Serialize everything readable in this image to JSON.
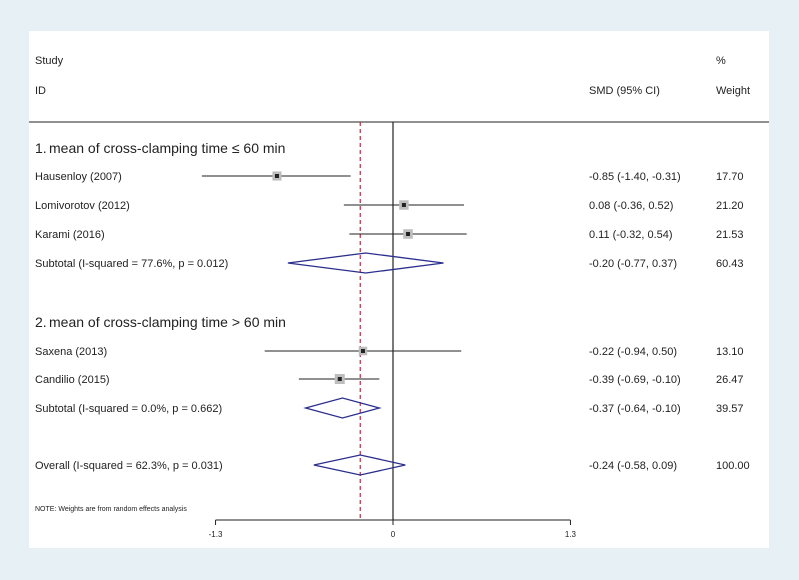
{
  "chart_data": {
    "type": "forest",
    "header": {
      "study_top": "Study",
      "study_bottom": "ID",
      "ci_header": "SMD (95% CI)",
      "weight_top": "%",
      "weight_bottom": "Weight"
    },
    "groups": [
      {
        "number": "1.",
        "title": "mean of cross-clamping time ≤ 60 min",
        "studies": [
          {
            "label": "Hausenloy (2007)",
            "est": -0.85,
            "lo": -1.4,
            "hi": -0.31,
            "ci": "-0.85 (-1.40, -0.31)",
            "weight": "17.70",
            "w": 17.7
          },
          {
            "label": "Lomivorotov (2012)",
            "est": 0.08,
            "lo": -0.36,
            "hi": 0.52,
            "ci": "0.08 (-0.36, 0.52)",
            "weight": "21.20",
            "w": 21.2
          },
          {
            "label": "Karami (2016)",
            "est": 0.11,
            "lo": -0.32,
            "hi": 0.54,
            "ci": "0.11 (-0.32, 0.54)",
            "weight": "21.53",
            "w": 21.53
          }
        ],
        "subtotal": {
          "label": "Subtotal  (I-squared = 77.6%, p = 0.012)",
          "est": -0.2,
          "lo": -0.77,
          "hi": 0.37,
          "ci": "-0.20 (-0.77, 0.37)",
          "weight": "60.43"
        }
      },
      {
        "number": "2.",
        "title": "mean of cross-clamping time > 60 min",
        "studies": [
          {
            "label": "Saxena (2013)",
            "est": -0.22,
            "lo": -0.94,
            "hi": 0.5,
            "ci": "-0.22 (-0.94, 0.50)",
            "weight": "13.10",
            "w": 13.1
          },
          {
            "label": "Candilio (2015)",
            "est": -0.39,
            "lo": -0.69,
            "hi": -0.1,
            "ci": "-0.39 (-0.69, -0.10)",
            "weight": "26.47",
            "w": 26.47
          }
        ],
        "subtotal": {
          "label": "Subtotal  (I-squared = 0.0%, p = 0.662)",
          "est": -0.37,
          "lo": -0.64,
          "hi": -0.1,
          "ci": "-0.37 (-0.64, -0.10)",
          "weight": "39.57"
        }
      }
    ],
    "overall": {
      "label": "Overall  (I-squared = 62.3%, p = 0.031)",
      "est": -0.24,
      "lo": -0.58,
      "hi": 0.09,
      "ci": "-0.24 (-0.58, 0.09)",
      "weight": "100.00"
    },
    "note": "NOTE: Weights are from random effects analysis",
    "xaxis": {
      "ticks": [
        -1.3,
        0,
        1.3
      ],
      "tick_labels": [
        "-1.3",
        "0",
        "1.3"
      ],
      "xlim": [
        -1.3,
        1.3
      ]
    },
    "null_line": 0,
    "pooled_line": -0.24,
    "colors": {
      "diamond": "#2b2e8c",
      "pooled_line": "#b03040",
      "ink": "#222222",
      "panel": "#ffffff",
      "background": "#e7f0f4"
    }
  }
}
